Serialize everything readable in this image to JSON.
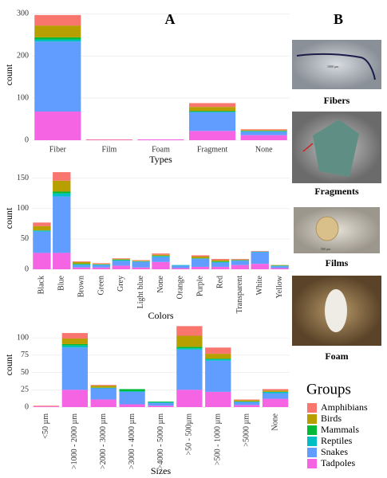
{
  "labels": {
    "a": "A",
    "b": "B"
  },
  "photos": [
    {
      "caption": "Fibers",
      "scale": "1000 µm"
    },
    {
      "caption": "Fragments"
    },
    {
      "caption": "Films",
      "scale": "500 µm"
    },
    {
      "caption": "Foam"
    }
  ],
  "chart_data": [
    {
      "type": "bar",
      "stacked": true,
      "x_label": "Types",
      "y_label": "count",
      "legend_title": "Groups",
      "grid": true,
      "categories": [
        "Fiber",
        "Film",
        "Foam",
        "Fragment",
        "None"
      ],
      "ylim": [
        0,
        310
      ],
      "yticks": [
        0,
        100,
        200,
        300
      ],
      "series": [
        {
          "name": "Amphibians",
          "color": "#F8766D",
          "values": [
            25,
            1,
            0,
            9,
            2
          ]
        },
        {
          "name": "Birds",
          "color": "#B79F00",
          "values": [
            28,
            0,
            0,
            10,
            2
          ]
        },
        {
          "name": "Mammals",
          "color": "#00BA38",
          "values": [
            5,
            0,
            0,
            1,
            0
          ]
        },
        {
          "name": "Reptiles",
          "color": "#00BFC4",
          "values": [
            5,
            0,
            0,
            2,
            2
          ]
        },
        {
          "name": "Snakes",
          "color": "#619CFF",
          "values": [
            166,
            0,
            0,
            44,
            8
          ]
        },
        {
          "name": "Tadpoles",
          "color": "#F564E3",
          "values": [
            68,
            1,
            2,
            22,
            12
          ]
        }
      ]
    },
    {
      "type": "bar",
      "stacked": true,
      "x_label": "Colors",
      "y_label": "count",
      "grid": true,
      "categories": [
        "Black",
        "Blue",
        "Brown",
        "Green",
        "Grey",
        "Light blue",
        "None",
        "Orange",
        "Purple",
        "Red",
        "Transparent",
        "White",
        "Yellow"
      ],
      "ylim": [
        0,
        168
      ],
      "yticks": [
        0,
        50,
        100,
        150
      ],
      "series": [
        {
          "name": "Amphibians",
          "color": "#F8766D",
          "values": [
            6,
            14,
            1,
            1,
            1,
            1,
            2,
            0,
            2,
            2,
            1,
            1,
            0
          ]
        },
        {
          "name": "Birds",
          "color": "#B79F00",
          "values": [
            7,
            18,
            3,
            1,
            1,
            1,
            2,
            0,
            3,
            2,
            1,
            0,
            1
          ]
        },
        {
          "name": "Mammals",
          "color": "#00BA38",
          "values": [
            0,
            3,
            1,
            0,
            1,
            0,
            0,
            0,
            0,
            1,
            0,
            0,
            0
          ]
        },
        {
          "name": "Reptiles",
          "color": "#00BFC4",
          "values": [
            2,
            5,
            1,
            1,
            1,
            1,
            2,
            1,
            1,
            1,
            1,
            1,
            1
          ]
        },
        {
          "name": "Snakes",
          "color": "#619CFF",
          "values": [
            35,
            93,
            4,
            4,
            8,
            9,
            8,
            4,
            13,
            7,
            7,
            19,
            3
          ]
        },
        {
          "name": "Tadpoles",
          "color": "#F564E3",
          "values": [
            27,
            27,
            3,
            3,
            6,
            3,
            12,
            2,
            4,
            4,
            7,
            9,
            2
          ]
        }
      ]
    },
    {
      "type": "bar",
      "stacked": true,
      "x_label": "Sizes",
      "y_label": "count",
      "grid": true,
      "categories": [
        "<50 µm",
        ">1000 - 2000 µm",
        ">2000 - 3000 µm",
        ">3000 - 4000 µm",
        ">4000 - 5000 µm",
        ">50 - 500µm",
        ">500 - 1000 µm",
        ">5000 µm",
        "None"
      ],
      "ylim": [
        0,
        122
      ],
      "yticks": [
        0,
        25,
        50,
        75,
        100
      ],
      "series": [
        {
          "name": "Amphibians",
          "color": "#F8766D",
          "values": [
            1,
            8,
            1,
            0,
            0,
            14,
            9,
            1,
            2
          ]
        },
        {
          "name": "Birds",
          "color": "#B79F00",
          "values": [
            0,
            8,
            3,
            0,
            0,
            16,
            7,
            2,
            2
          ]
        },
        {
          "name": "Mammals",
          "color": "#00BA38",
          "values": [
            0,
            2,
            0,
            3,
            1,
            2,
            1,
            0,
            0
          ]
        },
        {
          "name": "Reptiles",
          "color": "#00BFC4",
          "values": [
            0,
            3,
            1,
            1,
            1,
            2,
            2,
            1,
            2
          ]
        },
        {
          "name": "Snakes",
          "color": "#619CFF",
          "values": [
            0,
            61,
            16,
            18,
            4,
            58,
            45,
            4,
            8
          ]
        },
        {
          "name": "Tadpoles",
          "color": "#F564E3",
          "values": [
            1,
            25,
            11,
            4,
            2,
            25,
            22,
            3,
            12
          ]
        }
      ]
    }
  ]
}
